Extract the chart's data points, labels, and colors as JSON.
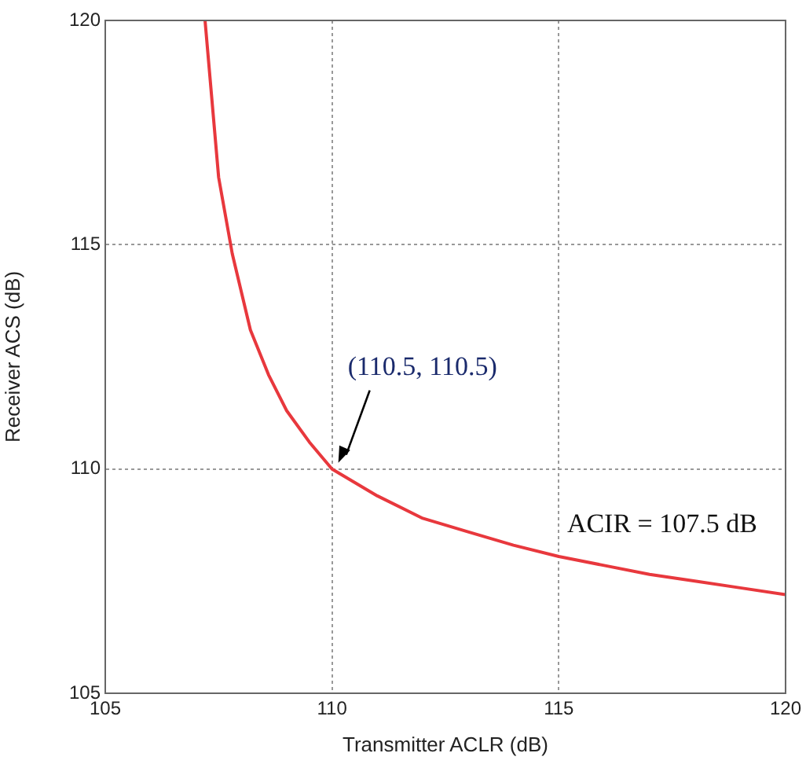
{
  "chart_data": {
    "type": "line",
    "xlabel": "Transmitter ACLR (dB)",
    "ylabel": "Receiver ACS (dB)",
    "xlim": [
      105,
      120
    ],
    "ylim": [
      105,
      120
    ],
    "xticks": [
      105,
      110,
      115,
      120
    ],
    "yticks": [
      105,
      110,
      115,
      120
    ],
    "grid": true,
    "legend": false,
    "marker": "none",
    "line_style": "solid",
    "series": [
      {
        "color": "#e8383d",
        "x": [
          107.2,
          107.5,
          107.8,
          108.2,
          108.6,
          109,
          109.5,
          110,
          111,
          112,
          113,
          114,
          115,
          116,
          117,
          118,
          119,
          120
        ],
        "values": [
          120,
          116.5,
          114.8,
          113.1,
          112.1,
          111.3,
          110.6,
          110,
          109.4,
          108.9,
          108.6,
          108.3,
          108.05,
          107.85,
          107.65,
          107.5,
          107.35,
          107.2
        ]
      }
    ],
    "annotations": [
      "(110.5, 110.5)",
      "ACIR = 107.5 dB"
    ]
  }
}
